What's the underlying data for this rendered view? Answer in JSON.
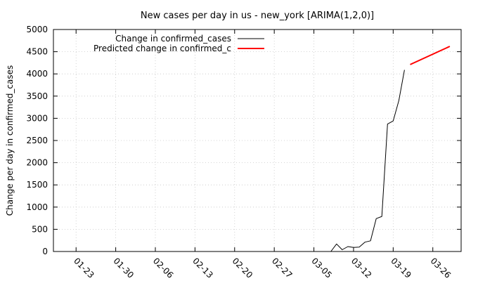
{
  "chart_data": {
    "type": "line",
    "title": "New cases per day in us - new_york [ARIMA(1,2,0)]",
    "xlabel": "",
    "ylabel": "Change per day in confirmed_cases",
    "xlim": [
      "2020-01-19",
      "2020-03-31"
    ],
    "ylim": [
      0,
      5000
    ],
    "yticks": [
      0,
      500,
      1000,
      1500,
      2000,
      2500,
      3000,
      3500,
      4000,
      4500,
      5000
    ],
    "xticks": [
      {
        "date": "2020-01-23",
        "label": "01-23"
      },
      {
        "date": "2020-01-30",
        "label": "01-30"
      },
      {
        "date": "2020-02-06",
        "label": "02-06"
      },
      {
        "date": "2020-02-13",
        "label": "02-13"
      },
      {
        "date": "2020-02-20",
        "label": "02-20"
      },
      {
        "date": "2020-02-27",
        "label": "02-27"
      },
      {
        "date": "2020-03-05",
        "label": "03-05"
      },
      {
        "date": "2020-03-12",
        "label": "03-12"
      },
      {
        "date": "2020-03-19",
        "label": "03-19"
      },
      {
        "date": "2020-03-26",
        "label": "03-26"
      }
    ],
    "grid": true,
    "legend_position": "top-left",
    "series": [
      {
        "name": "Change in confirmed_cases",
        "color": "#000000",
        "points": [
          {
            "x": "2020-03-07",
            "y": 0
          },
          {
            "x": "2020-03-08",
            "y": 0
          },
          {
            "x": "2020-03-09",
            "y": 170
          },
          {
            "x": "2020-03-10",
            "y": 40
          },
          {
            "x": "2020-03-11",
            "y": 110
          },
          {
            "x": "2020-03-12",
            "y": 90
          },
          {
            "x": "2020-03-13",
            "y": 100
          },
          {
            "x": "2020-03-14",
            "y": 210
          },
          {
            "x": "2020-03-15",
            "y": 240
          },
          {
            "x": "2020-03-16",
            "y": 740
          },
          {
            "x": "2020-03-17",
            "y": 790
          },
          {
            "x": "2020-03-18",
            "y": 2870
          },
          {
            "x": "2020-03-19",
            "y": 2940
          },
          {
            "x": "2020-03-20",
            "y": 3400
          },
          {
            "x": "2020-03-21",
            "y": 4090
          }
        ]
      },
      {
        "name": "Predicted change in confirmed_c",
        "color": "#ff0000",
        "points": [
          {
            "x": "2020-03-22",
            "y": 4210
          },
          {
            "x": "2020-03-29",
            "y": 4620
          }
        ]
      }
    ]
  }
}
